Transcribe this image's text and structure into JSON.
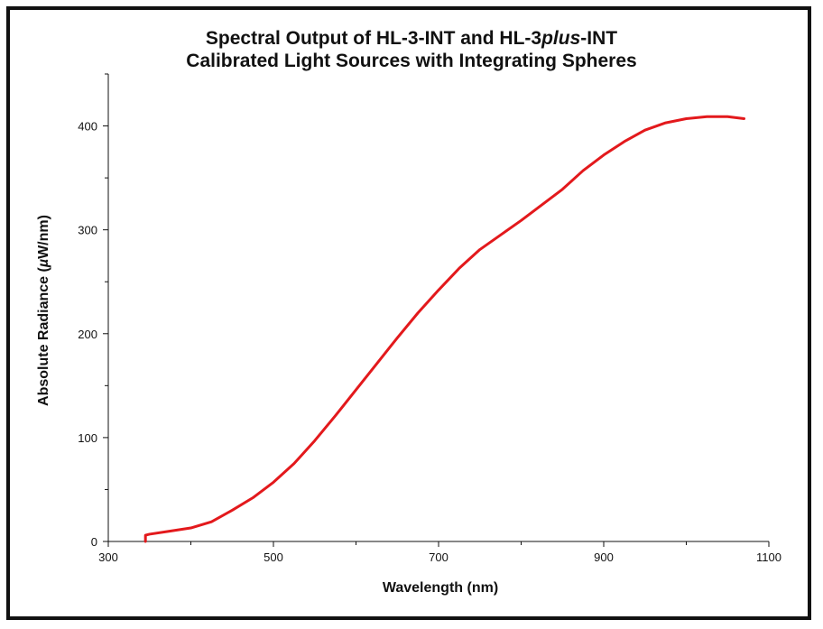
{
  "chart_data": {
    "type": "line",
    "title_lines": [
      [
        {
          "text": "Spectral Output of HL-3-INT and HL-3",
          "italic": false
        },
        {
          "text": "plus",
          "italic": true
        },
        {
          "text": "-INT",
          "italic": false
        }
      ],
      [
        {
          "text": "Calibrated Light Sources with Integrating Spheres",
          "italic": false
        }
      ]
    ],
    "xlabel": "Wavelength (nm)",
    "ylabel_parts": [
      {
        "text": "Absolute Radiance (",
        "italic": false
      },
      {
        "text": "µ",
        "italic": true
      },
      {
        "text": "W/nm)",
        "italic": false
      }
    ],
    "xlim": [
      300,
      1100
    ],
    "ylim": [
      0,
      450
    ],
    "x_major_ticks": [
      300,
      500,
      700,
      900,
      1100
    ],
    "x_tick_labels": [
      "300",
      "500",
      "700",
      "900",
      "1100"
    ],
    "x_minor_ticks": [
      400,
      600,
      800,
      1000
    ],
    "y_major_ticks": [
      0,
      100,
      200,
      300,
      400
    ],
    "y_tick_labels": [
      "0",
      "100",
      "200",
      "300",
      "400"
    ],
    "y_minor_ticks": [
      50,
      150,
      250,
      350,
      450
    ],
    "grid": false,
    "legend": "none",
    "series": [
      {
        "color": "#e3191c",
        "x": [
          345,
          345,
          350,
          375,
          400,
          425,
          450,
          475,
          500,
          525,
          550,
          575,
          600,
          625,
          650,
          675,
          700,
          725,
          750,
          775,
          800,
          825,
          850,
          875,
          900,
          925,
          950,
          975,
          1000,
          1025,
          1050,
          1070
        ],
        "y": [
          0,
          6,
          7,
          10,
          13,
          19,
          30,
          42,
          57,
          75,
          97,
          121,
          146,
          171,
          196,
          220,
          242,
          263,
          281,
          295,
          309,
          324,
          339,
          357,
          372,
          385,
          396,
          403,
          407,
          409,
          409,
          407
        ]
      }
    ]
  }
}
